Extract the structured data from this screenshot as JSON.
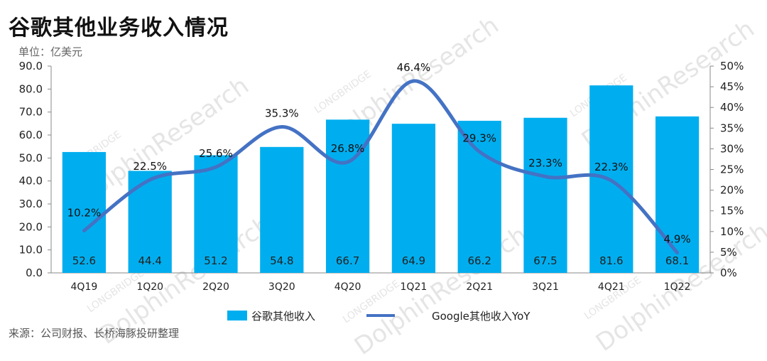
{
  "header": {
    "title": "谷歌其他业务收入情况",
    "unit": "单位：亿美元"
  },
  "footer": {
    "source": "来源：公司财报、长桥海豚投研整理"
  },
  "watermark": {
    "small": "LONGBRIDGE",
    "large": "DolphinResearch"
  },
  "colors": {
    "bar": "#00aeef",
    "line": "#4472c4",
    "axis": "#333333"
  },
  "chart_data": {
    "type": "bar",
    "categories": [
      "4Q19",
      "1Q20",
      "2Q20",
      "3Q20",
      "4Q20",
      "1Q21",
      "2Q21",
      "3Q21",
      "4Q21",
      "1Q22"
    ],
    "series": [
      {
        "name": "谷歌其他收入",
        "type": "bar",
        "axis": "left",
        "values": [
          52.6,
          44.4,
          51.2,
          54.8,
          66.7,
          64.9,
          66.2,
          67.5,
          81.6,
          68.1
        ],
        "labels": [
          "52.6",
          "44.4",
          "51.2",
          "54.8",
          "66.7",
          "64.9",
          "66.2",
          "67.5",
          "81.6",
          "68.1"
        ]
      },
      {
        "name": "Google其他收入YoY",
        "type": "line",
        "axis": "right",
        "values": [
          10.2,
          22.5,
          25.6,
          35.3,
          26.8,
          46.4,
          29.3,
          23.3,
          22.3,
          4.9
        ],
        "labels": [
          "10.2%",
          "22.5%",
          "25.6%",
          "35.3%",
          "26.8%",
          "46.4%",
          "29.3%",
          "23.3%",
          "22.3%",
          "4.9%"
        ]
      }
    ],
    "y_left": {
      "ylim": [
        0,
        90
      ],
      "ticks": [
        "0.0",
        "10.0",
        "20.0",
        "30.0",
        "40.0",
        "50.0",
        "60.0",
        "70.0",
        "80.0",
        "90.0"
      ]
    },
    "y_right": {
      "ylim": [
        0,
        50
      ],
      "ticks": [
        "0%",
        "5%",
        "10%",
        "15%",
        "20%",
        "25%",
        "30%",
        "35%",
        "40%",
        "45%",
        "50%"
      ]
    },
    "legend": {
      "position": "bottom"
    },
    "grid": false
  }
}
